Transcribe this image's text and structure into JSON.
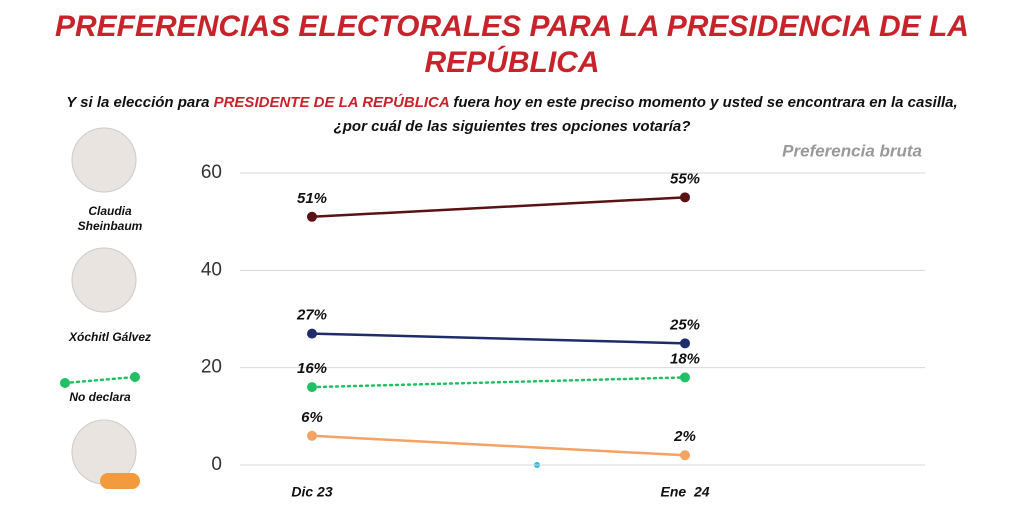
{
  "chart_data": {
    "type": "line",
    "title": [
      "PREFERENCIAS ELECTORALES PARA LA PRESIDENCIA DE LA",
      "REPÚBLICA"
    ],
    "subtitle": [
      [
        "Y si la elección para ",
        "PRESIDENTE DE LA REPÚBLICA",
        " fuera hoy en este preciso momento y usted se encontrara en la casilla,"
      ],
      [
        "¿por cuál de las siguientes tres opciones votaría?"
      ]
    ],
    "annotation": "Preferencia bruta",
    "categories": [
      "Dic 23",
      "Ene  24"
    ],
    "ylim": [
      0,
      60
    ],
    "yticks": [
      0,
      20,
      40,
      60
    ],
    "grid": true,
    "series": [
      {
        "name": "Claudia Sheinbaum",
        "color": "#5b1212",
        "style": "solid",
        "values": [
          51,
          55
        ],
        "value_labels": [
          "51%",
          "55%"
        ]
      },
      {
        "name": "Xóchitl Gálvez",
        "color": "#1f2c6b",
        "style": "solid",
        "values": [
          27,
          25
        ],
        "value_labels": [
          "27%",
          "25%"
        ]
      },
      {
        "name": "No declara",
        "color": "#22c065",
        "style": "dotted",
        "values": [
          16,
          18
        ],
        "value_labels": [
          "16%",
          "18%"
        ]
      },
      {
        "color": "#f5a263",
        "style": "solid",
        "values": [
          6,
          2
        ],
        "value_labels": [
          "6%",
          "2%"
        ]
      }
    ]
  }
}
